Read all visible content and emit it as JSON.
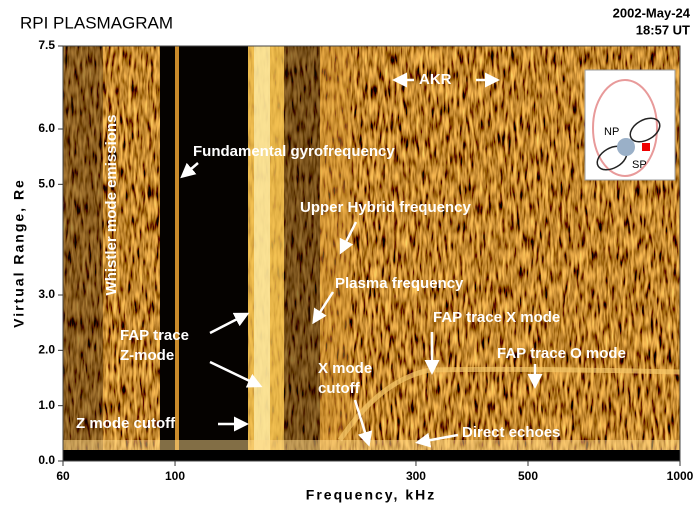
{
  "chart_data": {
    "type": "plasmagram",
    "title": "RPI PLASMAGRAM",
    "date": "2002-May-24",
    "time": "18:57 UT",
    "x_label": "Frequency, kHz",
    "y_label": "Virtual Range, Re",
    "x_log": true,
    "xlim": [
      60,
      1000
    ],
    "xticks": [
      60,
      100,
      300,
      500,
      1000
    ],
    "ylim": [
      0,
      7.5
    ],
    "yticks": [
      {
        "value": 0,
        "label": "0.0"
      },
      {
        "value": 1,
        "label": "1.0"
      },
      {
        "value": 2,
        "label": "2.0"
      },
      {
        "value": 3,
        "label": "3.0"
      },
      {
        "value": 5,
        "label": "5.0"
      },
      {
        "value": 6,
        "label": "6.0"
      },
      {
        "value": 7.5,
        "label": "7.5"
      }
    ],
    "annotations": [
      "Whistler mode emissions",
      "Fundamental gyrofrequency",
      "AKR",
      "Upper Hybrid frequency",
      "Plasma frequency",
      "FAP trace",
      "Z-mode",
      "X mode",
      "cutoff",
      "FAP trace X mode",
      "FAP trace O mode",
      "Z mode cutoff",
      "Direct echoes"
    ],
    "inset_labels": [
      "NP",
      "SP"
    ]
  }
}
